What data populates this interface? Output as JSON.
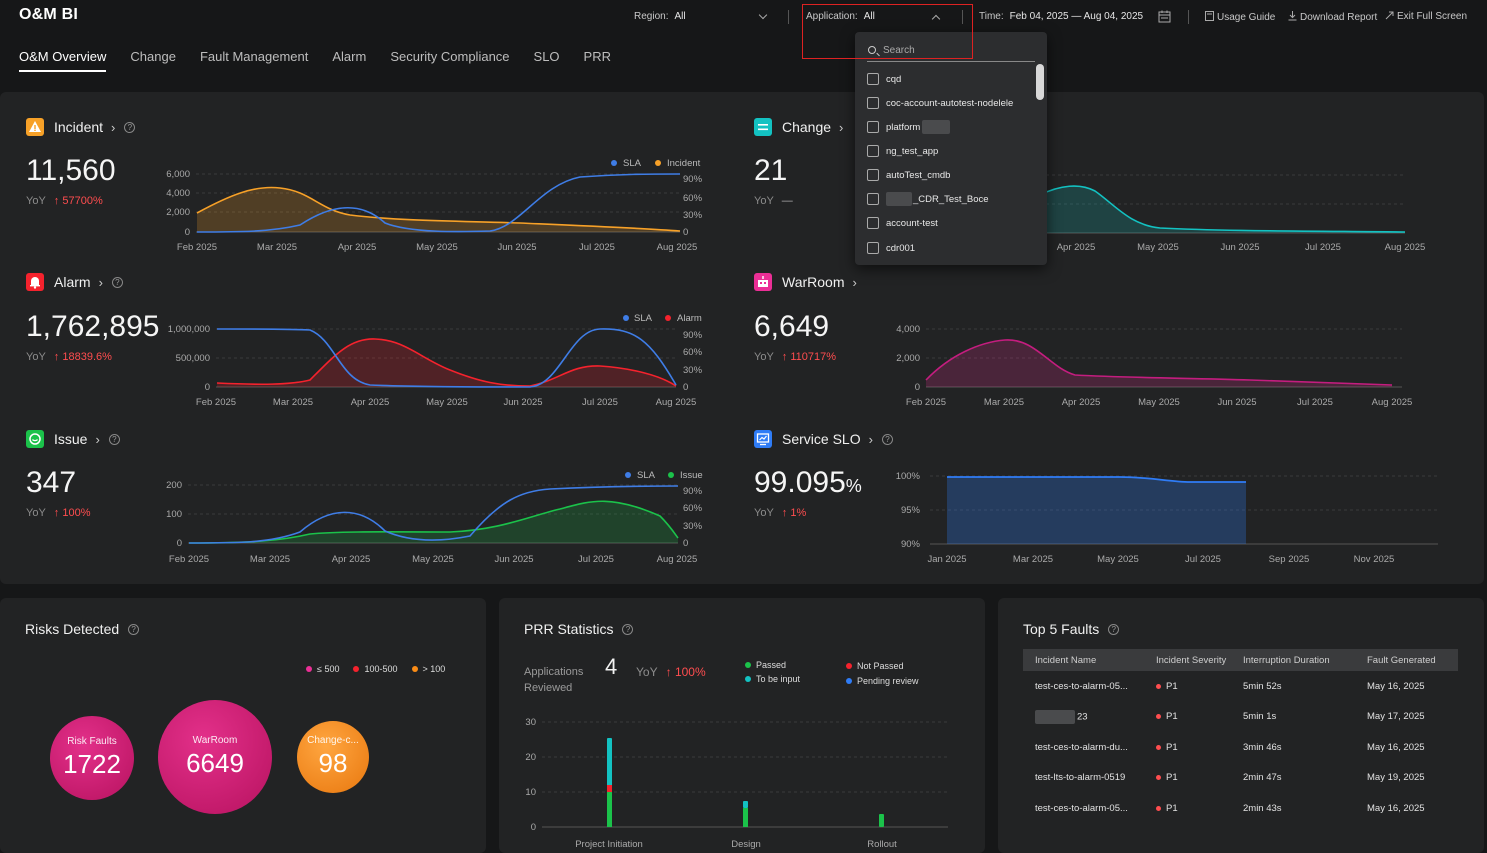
{
  "app": {
    "title": "O&M BI"
  },
  "header": {
    "region_label": "Region:",
    "region_value": "All",
    "application_label": "Application:",
    "application_value": "All",
    "time_label": "Time:",
    "time_value": "Feb 04, 2025 — Aug 04, 2025",
    "usage_guide": "Usage Guide",
    "download_report": "Download Report",
    "exit_full_screen": "Exit Full Screen"
  },
  "tabs": [
    {
      "label": "O&M Overview",
      "active": true
    },
    {
      "label": "Change",
      "active": false
    },
    {
      "label": "Fault Management",
      "active": false
    },
    {
      "label": "Alarm",
      "active": false
    },
    {
      "label": "Security Compliance",
      "active": false
    },
    {
      "label": "SLO",
      "active": false
    },
    {
      "label": "PRR",
      "active": false
    }
  ],
  "application_dropdown": {
    "search_placeholder": "Search",
    "options": [
      "cqd",
      "coc-account-autotest-nodelele",
      "platform",
      "ng_test_app",
      "autoTest_cmdb",
      "_CDR_Test_Boce",
      "account-test",
      "cdr001"
    ]
  },
  "metrics": {
    "incident": {
      "title": "Incident",
      "value": "11,560",
      "yoy_label": "YoY",
      "yoy_value": "57700%",
      "legend": [
        "SLA",
        "Incident"
      ],
      "color": "#f7a128"
    },
    "change": {
      "title": "Change",
      "value": "21",
      "yoy_label": "YoY",
      "yoy_value": "—",
      "color": "#13c2c2"
    },
    "alarm": {
      "title": "Alarm",
      "value": "1,762,895",
      "yoy_label": "YoY",
      "yoy_value": "18839.6%",
      "legend": [
        "SLA",
        "Alarm"
      ],
      "color": "#f5222d"
    },
    "warroom": {
      "title": "WarRoom",
      "value": "6,649",
      "yoy_label": "YoY",
      "yoy_value": "110717%",
      "color": "#eb2f96"
    },
    "issue": {
      "title": "Issue",
      "value": "347",
      "yoy_label": "YoY",
      "yoy_value": "100%",
      "legend": [
        "SLA",
        "Issue"
      ],
      "color": "#1bc24a"
    },
    "service_slo": {
      "title": "Service SLO",
      "value": "99.095",
      "unit": "%",
      "yoy_label": "YoY",
      "yoy_value": "1%",
      "color": "#2f7cf6"
    }
  },
  "chart_axes": {
    "incident": {
      "y_left": [
        "6,000",
        "4,000",
        "2,000",
        "0"
      ],
      "y_right": [
        "90%",
        "60%",
        "30%",
        "0"
      ],
      "x": [
        "Feb 2025",
        "Mar 2025",
        "Apr 2025",
        "May 2025",
        "Jun 2025",
        "Jul 2025",
        "Aug 2025"
      ]
    },
    "change": {
      "x": [
        "Apr 2025",
        "May 2025",
        "Jun 2025",
        "Jul 2025",
        "Aug 2025"
      ]
    },
    "alarm": {
      "y_left": [
        "1,000,000",
        "500,000",
        "0"
      ],
      "y_right": [
        "90%",
        "60%",
        "30%",
        "0"
      ],
      "x": [
        "Feb 2025",
        "Mar 2025",
        "Apr 2025",
        "May 2025",
        "Jun 2025",
        "Jul 2025",
        "Aug 2025"
      ]
    },
    "warroom": {
      "y_left": [
        "4,000",
        "2,000",
        "0"
      ],
      "x": [
        "Feb 2025",
        "Mar 2025",
        "Apr 2025",
        "May 2025",
        "Jun 2025",
        "Jul 2025",
        "Aug 2025"
      ]
    },
    "issue": {
      "y_left": [
        "200",
        "100",
        "0"
      ],
      "y_right": [
        "90%",
        "60%",
        "30%",
        "0"
      ],
      "x": [
        "Feb 2025",
        "Mar 2025",
        "Apr 2025",
        "May 2025",
        "Jun 2025",
        "Jul 2025",
        "Aug 2025"
      ]
    },
    "slo": {
      "y_left": [
        "100%",
        "95%",
        "90%"
      ],
      "x": [
        "Jan 2025",
        "Mar 2025",
        "May 2025",
        "Jul 2025",
        "Sep 2025",
        "Nov 2025"
      ]
    }
  },
  "risks": {
    "title": "Risks Detected",
    "legend": [
      {
        "label": "≤ 500",
        "color": "#eb2f96"
      },
      {
        "label": "100-500",
        "color": "#f5222d"
      },
      {
        "label": "> 100",
        "color": "#fa8c16"
      }
    ],
    "bubbles": [
      {
        "label": "Risk Faults",
        "value": "1722"
      },
      {
        "label": "WarRoom",
        "value": "6649"
      },
      {
        "label": "Change-c...",
        "value": "98"
      }
    ]
  },
  "prr": {
    "title": "PRR Statistics",
    "reviewed_label_1": "Applications",
    "reviewed_label_2": "Reviewed",
    "reviewed_value": "4",
    "yoy_label": "YoY",
    "yoy_value": "100%",
    "legend": [
      {
        "label": "Passed",
        "color": "#1bc24a"
      },
      {
        "label": "Not Passed",
        "color": "#f5222d"
      },
      {
        "label": "To be input",
        "color": "#13c2c2"
      },
      {
        "label": "Pending review",
        "color": "#2f7cf6"
      }
    ],
    "y_ticks": [
      "30",
      "20",
      "10",
      "0"
    ],
    "categories": [
      "Project Initiation",
      "Design",
      "Rollout"
    ]
  },
  "top_faults": {
    "title": "Top 5 Faults",
    "columns": [
      "Incident Name",
      "Incident Severity",
      "Interruption Duration",
      "Fault Generated"
    ],
    "rows": [
      {
        "name": "test-ces-to-alarm-05...",
        "severity": "P1",
        "duration": "5min 52s",
        "date": "May 16, 2025"
      },
      {
        "name": "23",
        "severity": "P1",
        "duration": "5min 1s",
        "date": "May 17, 2025"
      },
      {
        "name": "test-ces-to-alarm-du...",
        "severity": "P1",
        "duration": "3min 46s",
        "date": "May 16, 2025"
      },
      {
        "name": "test-lts-to-alarm-0519",
        "severity": "P1",
        "duration": "2min 47s",
        "date": "May 19, 2025"
      },
      {
        "name": "test-ces-to-alarm-05...",
        "severity": "P1",
        "duration": "2min 43s",
        "date": "May 16, 2025"
      }
    ]
  }
}
